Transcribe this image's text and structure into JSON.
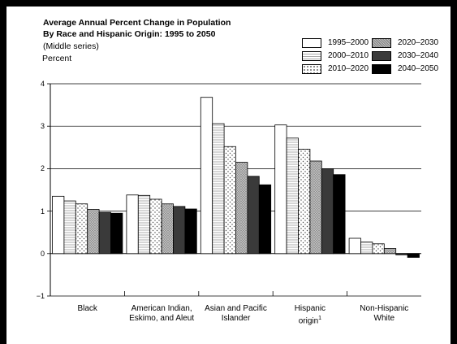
{
  "chart_data": {
    "type": "bar",
    "title_line1": "Average Annual Percent Change in Population",
    "title_line2": "By Race and Hispanic Origin: 1995 to 2050",
    "subtitle": "(Middle series)",
    "ylabel": "Percent",
    "ylim": [
      -1,
      4
    ],
    "yticks": [
      "4",
      "3",
      "2",
      "1",
      "0",
      "−1"
    ],
    "grid": "horizontal",
    "legend_position": "top-right",
    "categories": [
      {
        "line1": "Black",
        "line2": "",
        "sup": ""
      },
      {
        "line1": "American Indian,",
        "line2": "Eskimo, and Aleut",
        "sup": ""
      },
      {
        "line1": "Asian and Pacific",
        "line2": "Islander",
        "sup": ""
      },
      {
        "line1": "Hispanic",
        "line2": "origin",
        "sup": "1"
      },
      {
        "line1": "Non-Hispanic",
        "line2": "White",
        "sup": ""
      }
    ],
    "series": [
      {
        "name": "1995–2000",
        "pattern": "white",
        "values": [
          1.35,
          1.38,
          3.68,
          3.03,
          0.36
        ]
      },
      {
        "name": "2000–2010",
        "pattern": "hlines",
        "values": [
          1.24,
          1.37,
          3.06,
          2.72,
          0.27
        ]
      },
      {
        "name": "2010–2020",
        "pattern": "dots",
        "values": [
          1.17,
          1.28,
          2.52,
          2.46,
          0.23
        ]
      },
      {
        "name": "2020–2030",
        "pattern": "crosshatch",
        "values": [
          1.04,
          1.17,
          2.15,
          2.18,
          0.12
        ]
      },
      {
        "name": "2030–2040",
        "pattern": "darkgray",
        "values": [
          0.97,
          1.11,
          1.82,
          2.0,
          -0.03
        ]
      },
      {
        "name": "2040–2050",
        "pattern": "black",
        "values": [
          0.95,
          1.05,
          1.62,
          1.86,
          -0.09
        ]
      }
    ]
  }
}
